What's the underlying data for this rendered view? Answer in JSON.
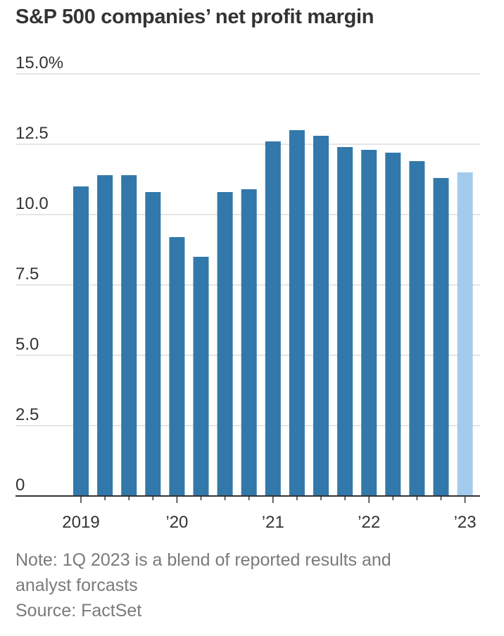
{
  "title": "S&P 500 companies’ net profit margin",
  "note": "Note: 1Q 2023 is a blend of reported results and",
  "note_cont": "analyst forcasts",
  "source": "Source: FactSet",
  "colors": {
    "actual": "#3378aa",
    "blend": "#a3cbed",
    "grid": "#dddddd",
    "axis": "#333333",
    "text": "#333333"
  },
  "chart_data": {
    "type": "bar",
    "categories": [
      "1Q 2019",
      "2Q 2019",
      "3Q 2019",
      "4Q 2019",
      "1Q 2020",
      "2Q 2020",
      "3Q 2020",
      "4Q 2020",
      "1Q 2021",
      "2Q 2021",
      "3Q 2021",
      "4Q 2021",
      "1Q 2022",
      "2Q 2022",
      "3Q 2022",
      "4Q 2022",
      "1Q 2023"
    ],
    "values": [
      11.0,
      11.4,
      11.4,
      10.8,
      9.2,
      8.5,
      10.8,
      10.9,
      12.6,
      13.0,
      12.8,
      12.4,
      12.3,
      12.2,
      11.9,
      11.3,
      11.5
    ],
    "highlight_index": 16,
    "ylim": [
      0,
      15
    ],
    "yticks": [
      0,
      2.5,
      5,
      7.5,
      10,
      12.5,
      15
    ],
    "ytick_labels": [
      "0",
      "2.5",
      "5.0",
      "7.5",
      "10.0",
      "12.5",
      "15.0%"
    ],
    "xtick_labels": [
      {
        "index": 0,
        "label": "2019"
      },
      {
        "index": 4,
        "label": "’20"
      },
      {
        "index": 8,
        "label": "’21"
      },
      {
        "index": 12,
        "label": "’22"
      },
      {
        "index": 16,
        "label": "’23"
      }
    ],
    "grid": true,
    "legend": "none"
  }
}
